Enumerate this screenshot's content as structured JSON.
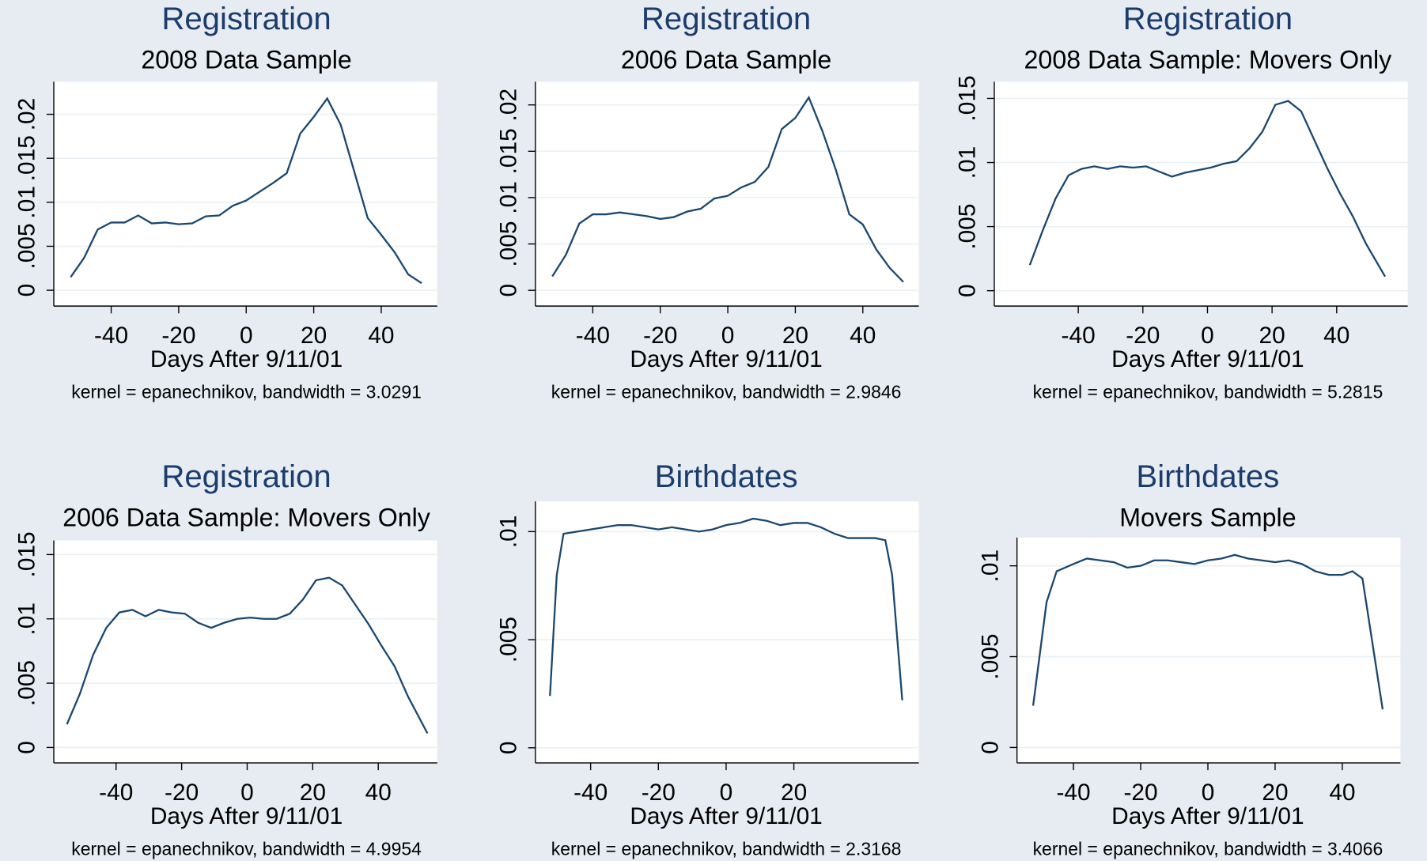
{
  "chart_data": [
    {
      "type": "line",
      "title": "Registration",
      "subtitle": "2008 Data Sample",
      "x_label": "Days After 9/11/01",
      "note": "kernel = epanechnikov, bandwidth = 3.0291",
      "color": "#1a476f",
      "grid": true,
      "x": [
        -52,
        -48,
        -44,
        -40,
        -36,
        -32,
        -28,
        -24,
        -20,
        -16,
        -12,
        -8,
        -4,
        0,
        4,
        8,
        12,
        16,
        20,
        24,
        28,
        32,
        36,
        40,
        44,
        48,
        52
      ],
      "values": [
        0.0015,
        0.0037,
        0.0069,
        0.0077,
        0.0077,
        0.0085,
        0.0076,
        0.0077,
        0.0075,
        0.0076,
        0.0084,
        0.0085,
        0.0096,
        0.0102,
        0.0112,
        0.0122,
        0.0133,
        0.0178,
        0.0197,
        0.0218,
        0.0188,
        0.0135,
        0.0082,
        0.0063,
        0.0043,
        0.0018,
        0.0008
      ],
      "xlim": [
        -57,
        56.6
      ],
      "ylim": [
        -0.0018,
        0.0237
      ],
      "xticks": [
        -40,
        -20,
        0,
        20,
        40
      ],
      "yticks": [
        0,
        {
          "value": 0.005,
          "label": ".005"
        },
        {
          "value": 0.01,
          "label": ".01"
        },
        {
          "value": 0.015,
          "label": ".015"
        },
        {
          "value": 0.02,
          "label": ".02"
        }
      ]
    },
    {
      "type": "line",
      "title": "Registration",
      "subtitle": "2006 Data Sample",
      "x_label": "Days After 9/11/01",
      "note": "kernel = epanechnikov, bandwidth = 2.9846",
      "color": "#1a476f",
      "grid": true,
      "x": [
        -52,
        -48,
        -44,
        -40,
        -36,
        -32,
        -28,
        -24,
        -20,
        -16,
        -12,
        -8,
        -4,
        0,
        4,
        8,
        12,
        16,
        20,
        24,
        28,
        32,
        36,
        40,
        44,
        48,
        52
      ],
      "values": [
        0.0015,
        0.0038,
        0.0072,
        0.0082,
        0.0082,
        0.0084,
        0.0082,
        0.008,
        0.0077,
        0.0079,
        0.0085,
        0.0088,
        0.0099,
        0.0102,
        0.0111,
        0.0117,
        0.0133,
        0.0174,
        0.0186,
        0.0208,
        0.0172,
        0.013,
        0.0082,
        0.0071,
        0.0044,
        0.0024,
        0.0009
      ],
      "xlim": [
        -57,
        56.6
      ],
      "ylim": [
        -0.0017,
        0.0225
      ],
      "xticks": [
        -40,
        -20,
        0,
        20,
        40
      ],
      "yticks": [
        0,
        {
          "value": 0.005,
          "label": ".005"
        },
        {
          "value": 0.01,
          "label": ".01"
        },
        {
          "value": 0.015,
          "label": ".015"
        },
        {
          "value": 0.02,
          "label": ".02"
        }
      ]
    },
    {
      "type": "line",
      "title": "Registration",
      "subtitle": "2008 Data Sample: Movers Only",
      "x_label": "Days After 9/11/01",
      "note": "kernel = epanechnikov, bandwidth = 5.2815",
      "color": "#1a476f",
      "grid": true,
      "x": [
        -55,
        -51,
        -47,
        -43,
        -39,
        -35,
        -31,
        -27,
        -23,
        -19,
        -15,
        -11,
        -7,
        -3,
        1,
        5,
        9,
        13,
        17,
        21,
        25,
        29,
        33,
        37,
        41,
        45,
        49,
        55
      ],
      "values": [
        0.002,
        0.0047,
        0.0072,
        0.009,
        0.0095,
        0.0097,
        0.0095,
        0.0097,
        0.0096,
        0.0097,
        0.0093,
        0.0089,
        0.0092,
        0.0094,
        0.0096,
        0.0099,
        0.0101,
        0.0111,
        0.0124,
        0.0145,
        0.0148,
        0.014,
        0.0118,
        0.0096,
        0.0076,
        0.0058,
        0.0037,
        0.0011
      ],
      "xlim": [
        -66,
        62
      ],
      "ylim": [
        -0.0012,
        0.0163
      ],
      "xticks": [
        -40,
        -20,
        0,
        20,
        40
      ],
      "yticks": [
        0,
        {
          "value": 0.005,
          "label": ".005"
        },
        {
          "value": 0.01,
          "label": ".01"
        },
        {
          "value": 0.015,
          "label": ".015"
        }
      ]
    },
    {
      "type": "line",
      "title": "Registration",
      "subtitle": "2006 Data Sample: Movers Only",
      "x_label": "Days After 9/11/01",
      "note": "kernel = epanechnikov, bandwidth = 4.9954",
      "color": "#1a476f",
      "grid": true,
      "x": [
        -55,
        -51,
        -47,
        -43,
        -39,
        -35,
        -31,
        -27,
        -23,
        -19,
        -15,
        -11,
        -7,
        -3,
        1,
        5,
        9,
        13,
        17,
        21,
        25,
        29,
        33,
        37,
        41,
        45,
        49,
        55
      ],
      "values": [
        0.0018,
        0.0042,
        0.0072,
        0.0093,
        0.0105,
        0.0107,
        0.0102,
        0.0107,
        0.0105,
        0.0104,
        0.0097,
        0.0093,
        0.0097,
        0.01,
        0.0101,
        0.01,
        0.01,
        0.0104,
        0.0115,
        0.013,
        0.0132,
        0.0126,
        0.0111,
        0.0096,
        0.0079,
        0.0063,
        0.004,
        0.0011
      ],
      "xlim": [
        -59,
        58
      ],
      "ylim": [
        -0.0012,
        0.0161
      ],
      "xticks": [
        -40,
        -20,
        0,
        20,
        40
      ],
      "yticks": [
        0,
        {
          "value": 0.005,
          "label": ".005"
        },
        {
          "value": 0.01,
          "label": ".01"
        },
        {
          "value": 0.015,
          "label": ".015"
        }
      ]
    },
    {
      "type": "line",
      "title": "Birthdates",
      "x_label": "Days After 9/11/01",
      "note": "kernel = epanechnikov, bandwidth = 2.3168",
      "color": "#1a476f",
      "grid": true,
      "x": [
        -52,
        -50,
        -48,
        -44,
        -40,
        -36,
        -32,
        -28,
        -24,
        -20,
        -16,
        -12,
        -8,
        -4,
        0,
        4,
        8,
        12,
        16,
        20,
        24,
        28,
        32,
        36,
        40,
        44,
        47,
        49,
        52
      ],
      "values": [
        0.0024,
        0.008,
        0.0099,
        0.01,
        0.0101,
        0.0102,
        0.0103,
        0.0103,
        0.0102,
        0.0101,
        0.0102,
        0.0101,
        0.01,
        0.0101,
        0.0103,
        0.0104,
        0.0106,
        0.0105,
        0.0103,
        0.0104,
        0.0104,
        0.0102,
        0.0099,
        0.0097,
        0.0097,
        0.0097,
        0.0096,
        0.008,
        0.0022
      ],
      "xlim": [
        -56.3,
        56.9
      ],
      "ylim": [
        -0.0007,
        0.0114
      ],
      "xticks": [
        -40,
        -20,
        0,
        20
      ],
      "yticks": [
        0,
        {
          "value": 0.005,
          "label": ".005"
        },
        {
          "value": 0.01,
          "label": ".01"
        }
      ]
    },
    {
      "type": "line",
      "title": "Birthdates",
      "subtitle": "Movers Sample",
      "x_label": "Days After 9/11/01",
      "note": "kernel = epanechnikov, bandwidth = 3.4066",
      "color": "#1a476f",
      "grid": true,
      "x": [
        -52,
        -48,
        -45,
        -40,
        -36,
        -32,
        -28,
        -24,
        -20,
        -16,
        -12,
        -8,
        -4,
        0,
        4,
        8,
        12,
        16,
        20,
        24,
        28,
        32,
        36,
        40,
        43,
        46,
        52
      ],
      "values": [
        0.0023,
        0.008,
        0.0097,
        0.0101,
        0.0104,
        0.0103,
        0.0102,
        0.0099,
        0.01,
        0.0103,
        0.0103,
        0.0102,
        0.0101,
        0.0103,
        0.0104,
        0.0106,
        0.0104,
        0.0103,
        0.0102,
        0.0103,
        0.0101,
        0.0097,
        0.0095,
        0.0095,
        0.0097,
        0.0093,
        0.0021
      ],
      "xlim": [
        -56.8,
        57.3
      ],
      "ylim": [
        -0.00085,
        0.01155
      ],
      "xticks": [
        -40,
        -20,
        0,
        20,
        40
      ],
      "yticks": [
        0,
        {
          "value": 0.005,
          "label": ".005"
        },
        {
          "value": 0.01,
          "label": ".01"
        }
      ]
    }
  ]
}
